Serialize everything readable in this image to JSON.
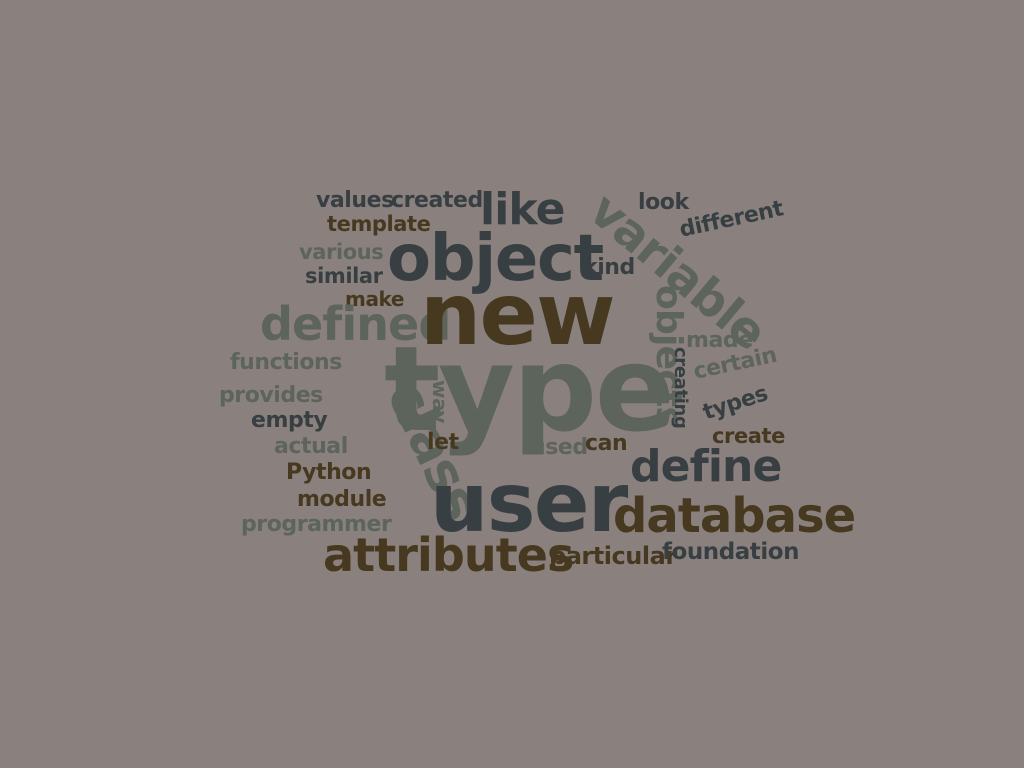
{
  "colors": {
    "background": "#8a807e",
    "dark": "#383f42",
    "gray": "#5d645c",
    "brown": "#47391f"
  },
  "words": {
    "values": "values",
    "created": "created",
    "like": "like",
    "look": "look",
    "variable": "variable",
    "different": "different",
    "template": "template",
    "object": "object",
    "various": "various",
    "kind": "kind",
    "similar": "similar",
    "make": "make",
    "new": "new",
    "defined": "defined",
    "objects": "objects",
    "made": "made",
    "creating": "creating",
    "certain": "certain",
    "functions": "functions",
    "type": "type",
    "provides": "provides",
    "class": "class",
    "way": "way",
    "types": "types",
    "empty": "empty",
    "create": "create",
    "actual": "actual",
    "let": "let",
    "used": "used",
    "can": "can",
    "define": "define",
    "python": "Python",
    "module": "module",
    "user": "user",
    "database": "database",
    "programmer": "programmer",
    "attributes": "attributes",
    "particular": "particular",
    "foundation": "foundation"
  }
}
